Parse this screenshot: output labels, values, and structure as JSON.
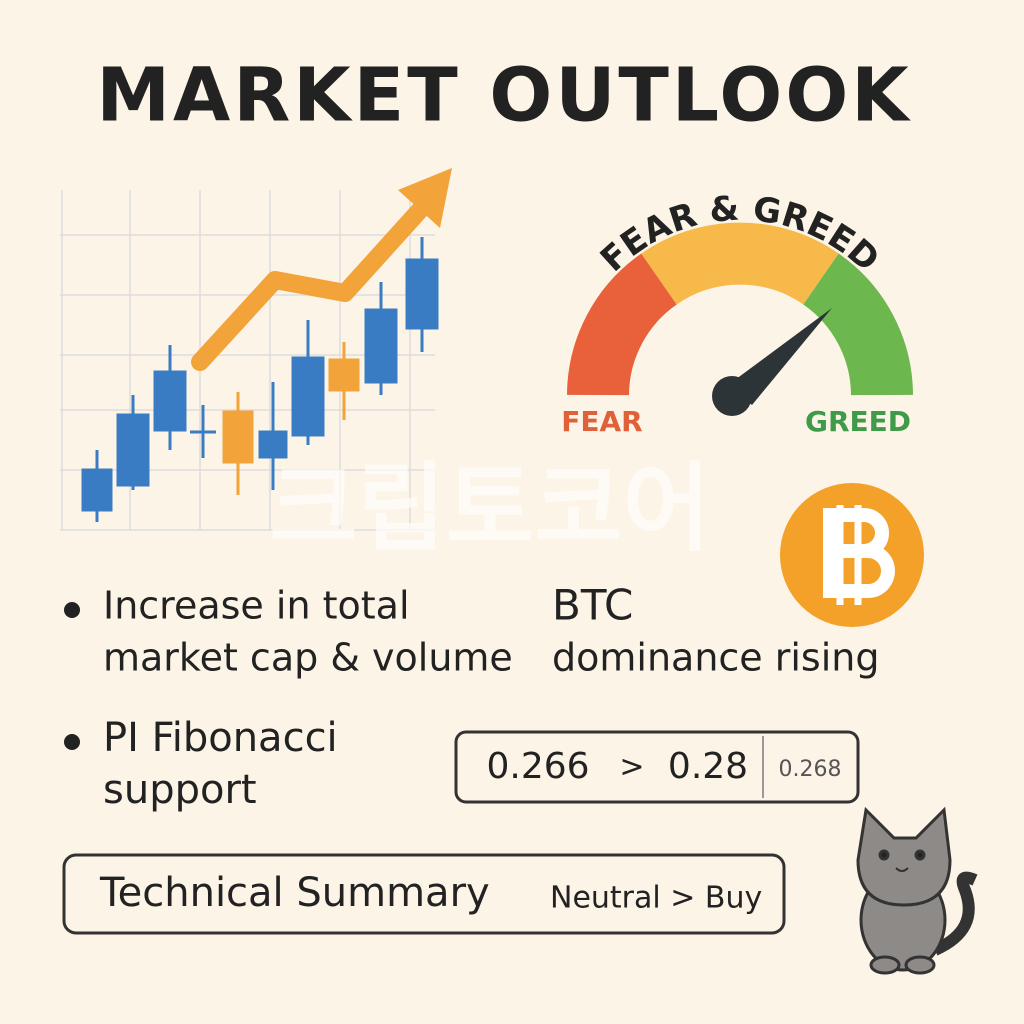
{
  "title": "MARKET OUTLOOK",
  "gauge": {
    "title": "FEAR & GREED",
    "low_label": "FEAR",
    "high_label": "GREED"
  },
  "watermark": "크립토코어",
  "points": [
    {
      "lines": [
        "Increase in total",
        "market cap & volume"
      ]
    },
    {
      "lines": [
        "BTC",
        "dominance rising"
      ]
    }
  ],
  "fibonacci": {
    "lines": [
      "PI Fibonacci",
      "support"
    ],
    "from": "0.266",
    "separator": ">",
    "to": "0.28",
    "extra": "0.268"
  },
  "summary": {
    "label": "Technical Summary",
    "value": "Neutral > Buy"
  }
}
